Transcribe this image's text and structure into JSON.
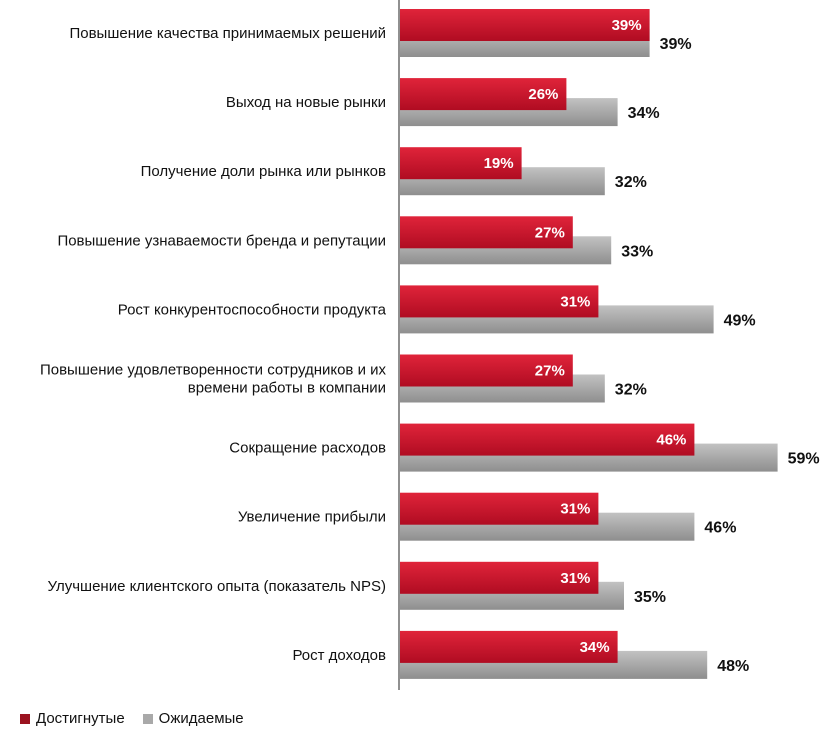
{
  "chart_data": {
    "type": "bar",
    "orientation": "horizontal",
    "categories": [
      [
        "Повышение качества принимаемых решений"
      ],
      [
        "Выход на новые рынки"
      ],
      [
        "Получение доли рынка или рынков"
      ],
      [
        "Повышение узнаваемости бренда и репутации"
      ],
      [
        "Рост конкурентоспособности продукта"
      ],
      [
        "Повышение удовлетворенности сотрудников и их",
        "времени работы в компании"
      ],
      [
        "Сокращение расходов"
      ],
      [
        "Увеличение прибыли"
      ],
      [
        "Улучшение клиентского опыта (показатель NPS)"
      ],
      [
        "Рост доходов"
      ]
    ],
    "series": [
      {
        "name": "Достигнутые",
        "color": "#c8102e",
        "values": [
          39,
          26,
          19,
          27,
          31,
          27,
          46,
          31,
          31,
          34
        ]
      },
      {
        "name": "Ожидаемые",
        "color": "#a9a9a9",
        "values": [
          39,
          34,
          32,
          33,
          49,
          32,
          59,
          46,
          35,
          48
        ]
      }
    ],
    "value_suffix": "%",
    "xlim": [
      0,
      60
    ],
    "legend_position": "bottom-left",
    "grid": false
  }
}
